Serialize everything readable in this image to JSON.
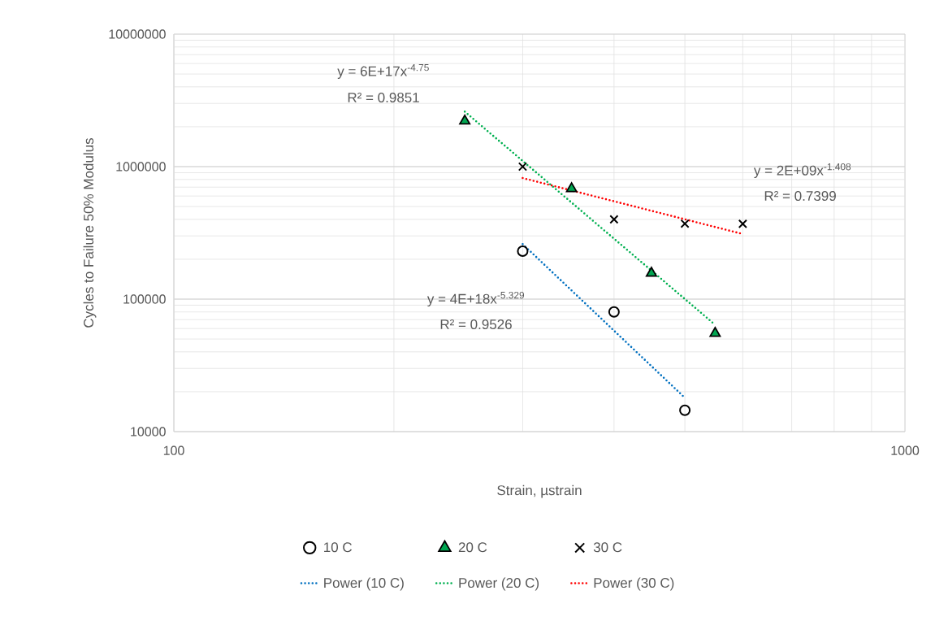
{
  "chart_data": {
    "type": "scatter",
    "xlabel": "Strain, µstrain",
    "ylabel": "Cycles to Failure 50% Modulus",
    "log": "xy",
    "grid": true,
    "legend": "bottom",
    "xlim": [
      100,
      1000
    ],
    "xticks": [
      100,
      1000
    ],
    "ylim": [
      10000,
      10000000
    ],
    "yticks": [
      10000,
      100000,
      1000000,
      10000000
    ],
    "series": [
      {
        "name": "10 C",
        "marker": "circle",
        "color": "#000000",
        "x": [
          300,
          400,
          500
        ],
        "values": [
          230000,
          80000,
          14500
        ]
      },
      {
        "name": "20 C",
        "marker": "triangle",
        "color": "#00a651",
        "x": [
          250,
          350,
          450,
          550
        ],
        "values": [
          2210000,
          682000,
          157000,
          55200
        ]
      },
      {
        "name": "30 C",
        "marker": "cross",
        "color": "#000000",
        "x": [
          300,
          400,
          500,
          600
        ],
        "values": [
          1000000,
          400000,
          371000,
          370000
        ]
      },
      {
        "name": "Power (10 C)",
        "type": "line",
        "line_style": "dotted",
        "marker": "none",
        "color": "#0070c0",
        "x": [
          300,
          500
        ],
        "values": [
          260000,
          18000
        ]
      },
      {
        "name": "Power (20 C)",
        "type": "line",
        "line_style": "dotted",
        "marker": "none",
        "color": "#00b050",
        "x": [
          250,
          550
        ],
        "values": [
          2600000,
          64000
        ]
      },
      {
        "name": "Power (30 C)",
        "type": "line",
        "line_style": "dotted",
        "marker": "none",
        "color": "#ff0000",
        "x": [
          300,
          600
        ],
        "values": [
          820000,
          310000
        ]
      }
    ],
    "annotations": [
      "y = 6E+17x$^{-4.75}$",
      "R² = 0.9851",
      "y = 2E+09x$^{-1.408}$",
      "R² = 0.7399",
      "y = 4E+18x$^{-5.329}$",
      "R² = 0.9526"
    ]
  }
}
